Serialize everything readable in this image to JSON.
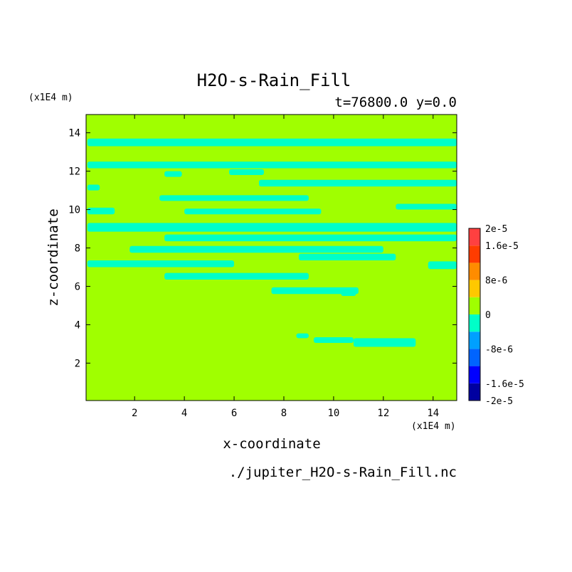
{
  "chart_data": {
    "type": "heatmap",
    "title": "H2O-s-Rain_Fill",
    "subtitle": "t=76800.0 y=0.0",
    "xlabel": "x-coordinate",
    "ylabel": "z-coordinate",
    "x_unit": "(x1E4 m)",
    "y_unit": "(x1E4 m)",
    "footer": "./jupiter_H2O-s-Rain_Fill.nc",
    "xlim": [
      0.05,
      14.95
    ],
    "ylim": [
      0.05,
      14.95
    ],
    "x_ticks": [
      2,
      4,
      6,
      8,
      10,
      12,
      14
    ],
    "y_ticks": [
      2,
      4,
      6,
      8,
      10,
      12,
      14
    ],
    "x_tick_labels": [
      "2",
      "4",
      "6",
      "8",
      "10",
      "12",
      "14"
    ],
    "y_tick_labels": [
      "2",
      "4",
      "6",
      "8",
      "10",
      "12",
      "14"
    ],
    "colorbar": {
      "range": [
        -2e-05,
        2e-05
      ],
      "levels": [
        {
          "from": -2e-05,
          "to": -1.6e-05,
          "color": "#0000a0"
        },
        {
          "from": -1.6e-05,
          "to": -1.2e-05,
          "color": "#0000ff"
        },
        {
          "from": -1.2e-05,
          "to": -8e-06,
          "color": "#0064ff"
        },
        {
          "from": -8e-06,
          "to": -4e-06,
          "color": "#00a0ff"
        },
        {
          "from": -4e-06,
          "to": 0,
          "color": "#00ffc8"
        },
        {
          "from": 0,
          "to": 4e-06,
          "color": "#a0ff00"
        },
        {
          "from": 4e-06,
          "to": 8e-06,
          "color": "#ffc800"
        },
        {
          "from": 8e-06,
          "to": 1.2e-05,
          "color": "#ff8c00"
        },
        {
          "from": 1.2e-05,
          "to": 1.6e-05,
          "color": "#ff3c00"
        },
        {
          "from": 1.6e-05,
          "to": 2e-05,
          "color": "#ff4040"
        }
      ],
      "tick_labels": [
        {
          "value": 2e-05,
          "text": "2e-5"
        },
        {
          "value": 1.6e-05,
          "text": "1.6e-5"
        },
        {
          "value": 8e-06,
          "text": "8e-6"
        },
        {
          "value": 0,
          "text": "0"
        },
        {
          "value": -8e-06,
          "text": "-8e-6"
        },
        {
          "value": -1.6e-05,
          "text": "-1.6e-5"
        },
        {
          "value": -2e-05,
          "text": "-2e-5"
        }
      ]
    },
    "background_level_color": "#a0ff00",
    "negative_region_color": "#00ffc8",
    "negative_regions": [
      {
        "x": [
          0.1,
          14.95
        ],
        "z": [
          13.3,
          13.7
        ]
      },
      {
        "x": [
          0.1,
          14.95
        ],
        "z": [
          12.15,
          12.5
        ]
      },
      {
        "x": [
          0.1,
          14.95
        ],
        "z": [
          8.85,
          9.3
        ]
      },
      {
        "x": [
          0.1,
          6.0
        ],
        "z": [
          7.0,
          7.35
        ]
      },
      {
        "x": [
          1.8,
          12.0
        ],
        "z": [
          7.75,
          8.1
        ]
      },
      {
        "x": [
          4.0,
          9.5
        ],
        "z": [
          9.75,
          10.05
        ]
      },
      {
        "x": [
          8.6,
          12.5
        ],
        "z": [
          7.35,
          7.7
        ]
      },
      {
        "x": [
          3.0,
          9.0
        ],
        "z": [
          10.45,
          10.75
        ]
      },
      {
        "x": [
          7.0,
          14.95
        ],
        "z": [
          11.2,
          11.55
        ]
      },
      {
        "x": [
          3.2,
          14.95
        ],
        "z": [
          8.35,
          8.7
        ]
      },
      {
        "x": [
          0.1,
          1.2
        ],
        "z": [
          9.75,
          10.1
        ]
      },
      {
        "x": [
          3.2,
          9.0
        ],
        "z": [
          6.35,
          6.7
        ]
      },
      {
        "x": [
          3.2,
          3.9
        ],
        "z": [
          11.7,
          12.0
        ]
      },
      {
        "x": [
          5.8,
          7.2
        ],
        "z": [
          11.8,
          12.1
        ]
      },
      {
        "x": [
          7.5,
          11.0
        ],
        "z": [
          5.6,
          5.95
        ]
      },
      {
        "x": [
          10.3,
          10.9
        ],
        "z": [
          5.5,
          5.85
        ]
      },
      {
        "x": [
          8.5,
          9.0
        ],
        "z": [
          3.3,
          3.55
        ]
      },
      {
        "x": [
          9.2,
          10.8
        ],
        "z": [
          3.05,
          3.35
        ]
      },
      {
        "x": [
          10.8,
          13.3
        ],
        "z": [
          2.85,
          3.3
        ]
      },
      {
        "x": [
          12.5,
          14.95
        ],
        "z": [
          10.0,
          10.3
        ]
      },
      {
        "x": [
          13.8,
          14.95
        ],
        "z": [
          6.9,
          7.3
        ]
      },
      {
        "x": [
          0.1,
          0.6
        ],
        "z": [
          11.0,
          11.3
        ]
      }
    ]
  }
}
